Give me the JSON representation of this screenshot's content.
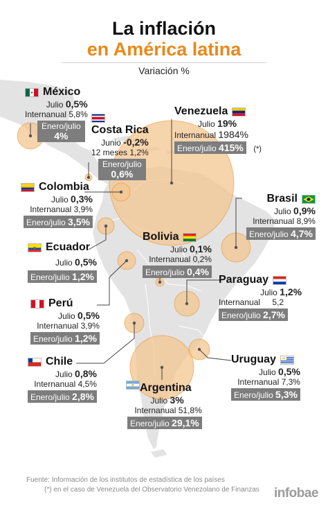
{
  "header": {
    "title_line1": "La inflación",
    "title_line2": "en América latina",
    "subtitle": "Variación %"
  },
  "countries": {
    "mexico": {
      "name": "México",
      "month_label": "Julio",
      "month_value": "0,5%",
      "year_label": "Internanual",
      "year_value": "5,8%",
      "ytd_label": "Enero/julio",
      "ytd_value": "4%",
      "flag": "mexico-flag-icon"
    },
    "costarica": {
      "name": "Costa Rica",
      "month_label": "Junio",
      "month_value": "-0,2%",
      "year_label": "12 meses",
      "year_value": "1,2%",
      "ytd_label": "Enero/julio",
      "ytd_value": "0,6%",
      "flag": "costa-rica-flag-icon"
    },
    "venezuela": {
      "name": "Venezuela",
      "month_label": "Julio",
      "month_value": "19%",
      "year_label": "Internanual",
      "year_value": "1984%",
      "ytd_label": "Enero/julio",
      "ytd_value": "415%",
      "note": "(*)",
      "flag": "venezuela-flag-icon"
    },
    "colombia": {
      "name": "Colombia",
      "month_label": "Julio",
      "month_value": "0,3%",
      "year_label": "Internanual",
      "year_value": "3,9%",
      "ytd_label": "Enero/julio",
      "ytd_value": "3,5%",
      "flag": "colombia-flag-icon"
    },
    "brasil": {
      "name": "Brasil",
      "month_label": "Julio",
      "month_value": "0,9%",
      "year_label": "Internanual",
      "year_value": "8,9%",
      "ytd_label": "Enero/julio",
      "ytd_value": "4,7%",
      "flag": "brazil-flag-icon"
    },
    "ecuador": {
      "name": "Ecuador",
      "month_label": "Julio",
      "month_value": "0,5%",
      "ytd_label": "Enero/julio",
      "ytd_value": "1,2%",
      "flag": "ecuador-flag-icon"
    },
    "bolivia": {
      "name": "Bolivia",
      "month_label": "Julio",
      "month_value": "0,1%",
      "year_label": "Internanual",
      "year_value": "0,2%",
      "ytd_label": "Enero/julio",
      "ytd_value": "0,4%",
      "flag": "bolivia-flag-icon"
    },
    "paraguay": {
      "name": "Paraguay",
      "month_label": "Julio",
      "month_value": "1,2%",
      "year_label": "Internanual",
      "year_value": "5,2",
      "ytd_label": "Enero/julio",
      "ytd_value": "2,7%",
      "flag": "paraguay-flag-icon"
    },
    "peru": {
      "name": "Perú",
      "month_label": "Julio",
      "month_value": "0,5%",
      "year_label": "Internanual",
      "year_value": "3,9%",
      "ytd_label": "Enero/julio",
      "ytd_value": "1,2%",
      "flag": "peru-flag-icon"
    },
    "chile": {
      "name": "Chile",
      "month_label": "Julio",
      "month_value": "0,8%",
      "year_label": "Internanual",
      "year_value": "4,5%",
      "ytd_label": "Enero/julio",
      "ytd_value": "2,8%",
      "flag": "chile-flag-icon"
    },
    "uruguay": {
      "name": "Uruguay",
      "month_label": "Julio",
      "month_value": "0,5%",
      "year_label": "Internanual",
      "year_value": "7,3%",
      "ytd_label": "Enero/julio",
      "ytd_value": "5,3%",
      "flag": "uruguay-flag-icon"
    },
    "argentina": {
      "name": "Argentina",
      "month_label": "Julio",
      "month_value": "3%",
      "year_label": "Internanual",
      "year_value": "51,8%",
      "ytd_label": "Enero/julio",
      "ytd_value": "29,1%",
      "flag": "argentina-flag-icon"
    }
  },
  "footer": {
    "source": "Fuente: Información de los institutos de estadística de los países",
    "note": "(*) en el caso de Venezuela del Observatorio Venezolano de Finanzas",
    "brand": "infobae"
  },
  "colors": {
    "map_fill": "#e3e3e3",
    "bubble": "#f3c590",
    "accent": "#e8891a",
    "box": "#7d7d7d"
  }
}
